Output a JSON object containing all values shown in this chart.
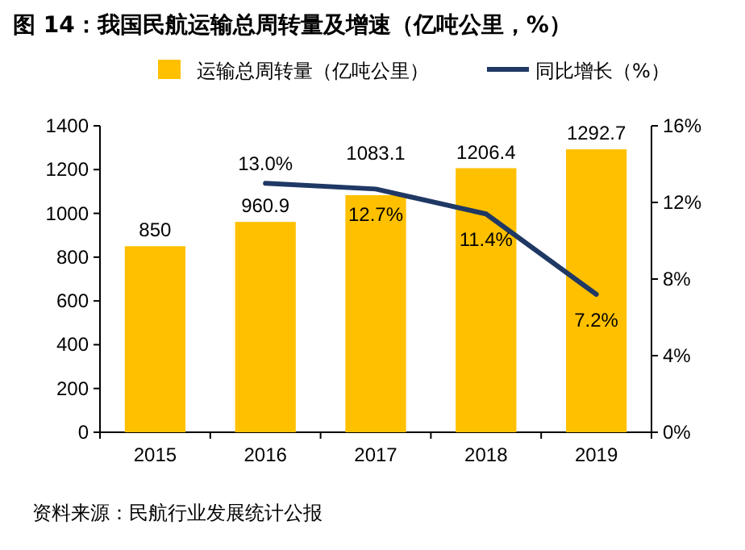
{
  "chart_data": {
    "type": "bar",
    "title": "图 14：我国民航运输总周转量及增速（亿吨公里，%）",
    "categories": [
      "2015",
      "2016",
      "2017",
      "2018",
      "2019"
    ],
    "series": [
      {
        "name": "运输总周转量（亿吨公里）",
        "color": "#ffc000",
        "values": [
          850,
          960.9,
          1083.1,
          1206.4,
          1292.7
        ],
        "value_labels": [
          "850",
          "960.9",
          "1083.1",
          "1206.4",
          "1292.7"
        ]
      },
      {
        "name": "同比增长（%）",
        "type": "line",
        "axis": "y2",
        "color": "#1f3864",
        "values": [
          null,
          13.0,
          12.7,
          11.4,
          7.2
        ],
        "value_labels": [
          null,
          "13.0%",
          "12.7%",
          "11.4%",
          "7.2%"
        ]
      }
    ],
    "ylim": [
      0,
      1400
    ],
    "yticks": [
      0,
      200,
      400,
      600,
      800,
      1000,
      1200,
      1400
    ],
    "y2lim": [
      0,
      16
    ],
    "y2ticks": [
      {
        "value": 0,
        "label": "0%"
      },
      {
        "value": 4,
        "label": "4%"
      },
      {
        "value": 8,
        "label": "8%"
      },
      {
        "value": 12,
        "label": "12%"
      },
      {
        "value": 16,
        "label": "16%"
      }
    ],
    "legend": "top",
    "grid": false,
    "marker": "none",
    "line_style": "solid",
    "annotations": [
      "资料来源：民航行业发展统计公报"
    ]
  }
}
